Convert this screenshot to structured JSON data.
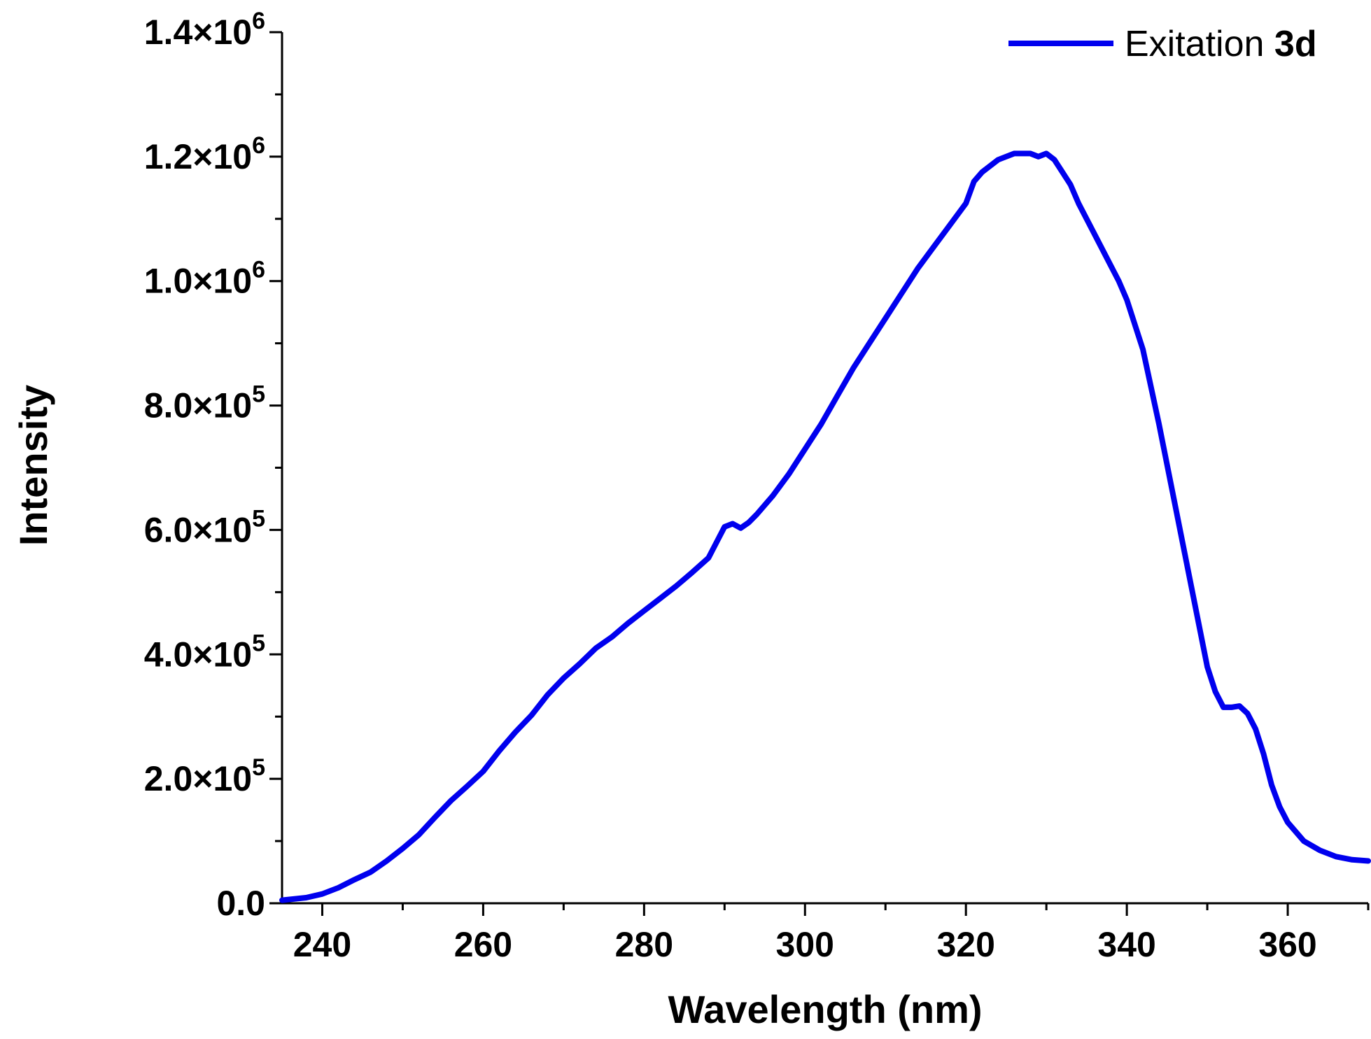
{
  "chart_data": {
    "type": "line",
    "title": "",
    "xlabel": "Wavelength (nm)",
    "ylabel": "Intensity",
    "xlim": [
      235,
      370
    ],
    "ylim": [
      0,
      1400000
    ],
    "xticks": [
      240,
      260,
      280,
      300,
      320,
      340,
      360
    ],
    "xtick_labels": [
      "240",
      "260",
      "280",
      "300",
      "320",
      "340",
      "360"
    ],
    "yticks": [
      {
        "value": 0,
        "mantissa": "0.0",
        "exponent": ""
      },
      {
        "value": 200000,
        "mantissa": "2.0×10",
        "exponent": "5"
      },
      {
        "value": 400000,
        "mantissa": "4.0×10",
        "exponent": "5"
      },
      {
        "value": 600000,
        "mantissa": "6.0×10",
        "exponent": "5"
      },
      {
        "value": 800000,
        "mantissa": "8.0×10",
        "exponent": "5"
      },
      {
        "value": 1000000,
        "mantissa": "1.0×10",
        "exponent": "6"
      },
      {
        "value": 1200000,
        "mantissa": "1.2×10",
        "exponent": "6"
      },
      {
        "value": 1400000,
        "mantissa": "1.4×10",
        "exponent": "6"
      }
    ],
    "grid": false,
    "legend_position": "top-right",
    "series": [
      {
        "name": "Exitation",
        "name_bold_suffix": "3d",
        "color": "#0000ee",
        "x": [
          235,
          238,
          240,
          242,
          244,
          246,
          248,
          250,
          252,
          254,
          256,
          258,
          260,
          262,
          264,
          266,
          268,
          270,
          272,
          274,
          276,
          278,
          280,
          282,
          284,
          286,
          288,
          289,
          290,
          291,
          292,
          293,
          294,
          296,
          298,
          300,
          302,
          304,
          306,
          308,
          310,
          312,
          314,
          316,
          318,
          320,
          321,
          322,
          324,
          326,
          328,
          329,
          330,
          331,
          332,
          333,
          334,
          336,
          338,
          339,
          340,
          342,
          344,
          346,
          348,
          350,
          351,
          352,
          353,
          354,
          355,
          356,
          357,
          358,
          359,
          360,
          362,
          364,
          366,
          368,
          370
        ],
        "y": [
          5000,
          9000,
          15000,
          25000,
          38000,
          50000,
          68000,
          88000,
          110000,
          138000,
          165000,
          188000,
          212000,
          245000,
          275000,
          302000,
          335000,
          362000,
          385000,
          410000,
          428000,
          450000,
          470000,
          490000,
          510000,
          532000,
          555000,
          580000,
          605000,
          610000,
          603000,
          612000,
          625000,
          655000,
          690000,
          730000,
          770000,
          815000,
          860000,
          900000,
          940000,
          980000,
          1020000,
          1055000,
          1090000,
          1125000,
          1160000,
          1175000,
          1195000,
          1205000,
          1205000,
          1200000,
          1205000,
          1195000,
          1175000,
          1155000,
          1125000,
          1075000,
          1025000,
          1000000,
          970000,
          890000,
          770000,
          640000,
          510000,
          380000,
          340000,
          315000,
          315000,
          317000,
          305000,
          280000,
          240000,
          190000,
          155000,
          130000,
          100000,
          85000,
          75000,
          70000,
          68000
        ]
      }
    ]
  }
}
